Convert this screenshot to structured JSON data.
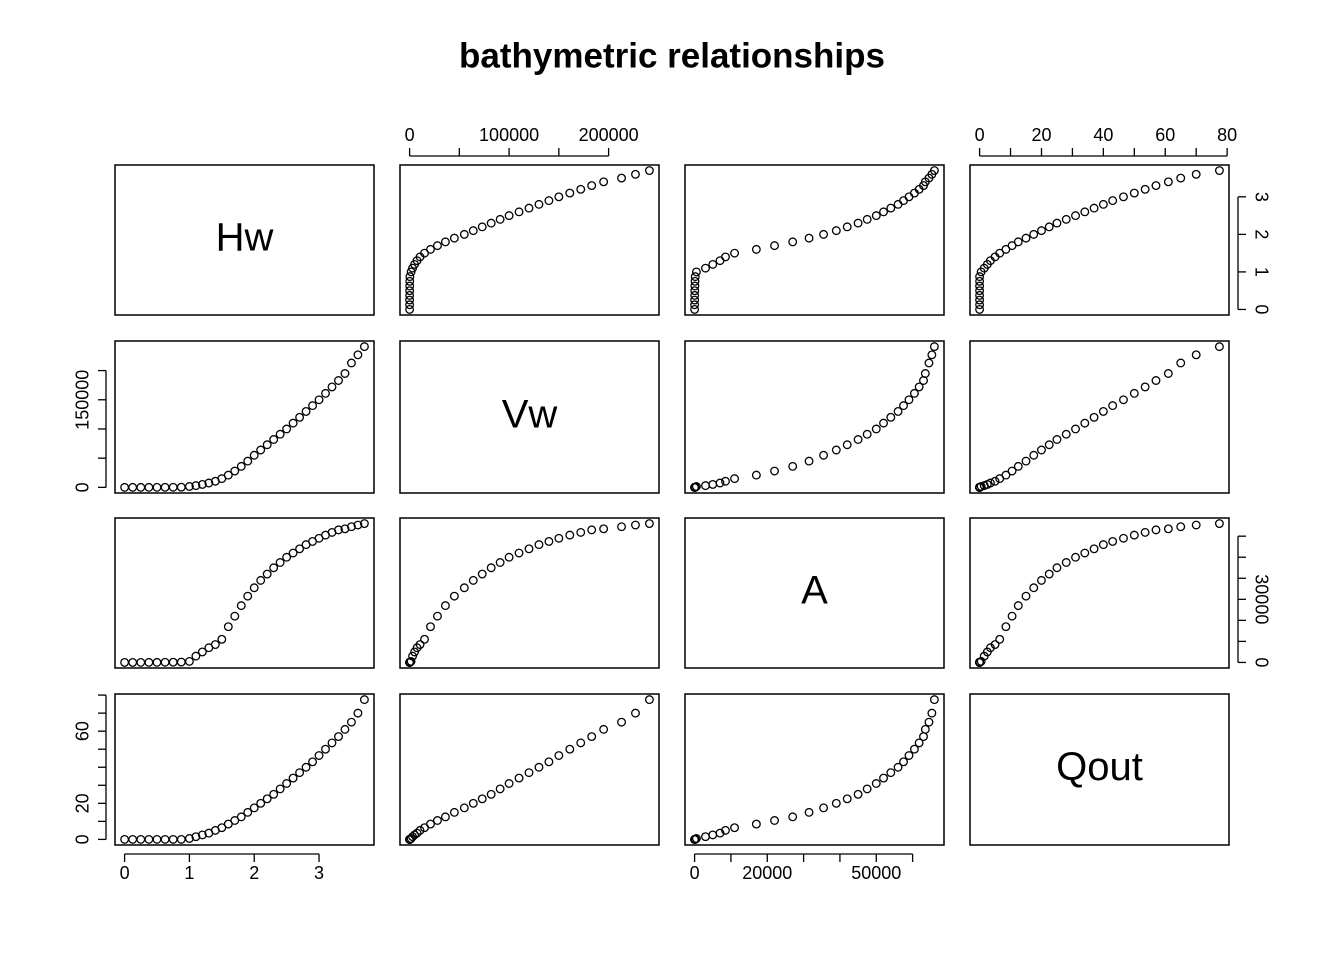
{
  "chart_data": {
    "type": "scatter_matrix",
    "title": "bathymetric relationships",
    "color": "#000000",
    "variables": [
      {
        "name": "Hw",
        "values": [
          0,
          0.125,
          0.25,
          0.375,
          0.5,
          0.625,
          0.75,
          0.875,
          1.0,
          1.1,
          1.2,
          1.3,
          1.4,
          1.5,
          1.6,
          1.7,
          1.8,
          1.9,
          2.0,
          2.1,
          2.2,
          2.3,
          2.4,
          2.5,
          2.6,
          2.7,
          2.8,
          2.9,
          3.0,
          3.1,
          3.2,
          3.3,
          3.4,
          3.5,
          3.6,
          3.7
        ],
        "lim": [
          -0.148,
          3.848
        ],
        "ticks": [
          0,
          1,
          2,
          3
        ],
        "axes": [
          {
            "side": "bottom",
            "labels": [
              0,
              1,
              2,
              3
            ]
          },
          {
            "side": "right",
            "labels": [
              0,
              1,
              2,
              3
            ]
          }
        ]
      },
      {
        "name": "Vw",
        "values": [
          0,
          2,
          10,
          30,
          60,
          110,
          180,
          280,
          1500,
          3000,
          5000,
          7500,
          10500,
          15000,
          21000,
          28000,
          36000,
          45000,
          55000,
          64000,
          73000,
          82000,
          91000,
          100000,
          110000,
          120000,
          130000,
          140000,
          150000,
          161000,
          172000,
          183000,
          195000,
          213000,
          227000,
          241000
        ],
        "lim": [
          -9640,
          250640
        ],
        "ticks": [
          0,
          50000,
          100000,
          150000,
          200000
        ],
        "axes": [
          {
            "side": "top",
            "labels": [
              0,
              100000,
              200000
            ]
          },
          {
            "side": "left",
            "labels": [
              0,
              150000
            ]
          }
        ]
      },
      {
        "name": "A",
        "values": [
          0,
          5,
          15,
          30,
          50,
          80,
          120,
          180,
          500,
          3000,
          5000,
          7000,
          8500,
          11000,
          17000,
          22000,
          27000,
          31500,
          35500,
          39000,
          42000,
          45000,
          47500,
          50000,
          52000,
          54000,
          56000,
          57500,
          59000,
          60500,
          61800,
          63000,
          63500,
          64500,
          65300,
          66000
        ],
        "lim": [
          -2640,
          68640
        ],
        "ticks": [
          0,
          10000,
          20000,
          30000,
          40000,
          50000,
          60000
        ],
        "axes": [
          {
            "side": "bottom",
            "labels": [
              0,
              20000,
              50000
            ]
          },
          {
            "side": "right",
            "labels": [
              0,
              30000
            ]
          }
        ]
      },
      {
        "name": "Qout",
        "values": [
          0,
          0,
          0,
          0,
          0,
          0,
          0,
          0,
          0.5,
          1.5,
          2.5,
          3.5,
          5,
          6.5,
          8.5,
          10.5,
          12.5,
          15,
          17.5,
          20,
          22.5,
          25,
          28,
          31,
          34,
          37,
          40,
          43,
          46.5,
          50,
          53.5,
          57,
          61,
          65,
          70,
          77.5
        ],
        "lim": [
          -3.1,
          80.6
        ],
        "ticks": [
          0,
          10,
          20,
          30,
          40,
          50,
          60,
          70,
          80
        ],
        "axes": [
          {
            "side": "top",
            "labels": [
              0,
              20,
              40,
              60,
              80
            ]
          },
          {
            "side": "left",
            "labels": [
              0,
              20,
              60
            ]
          }
        ]
      }
    ]
  }
}
